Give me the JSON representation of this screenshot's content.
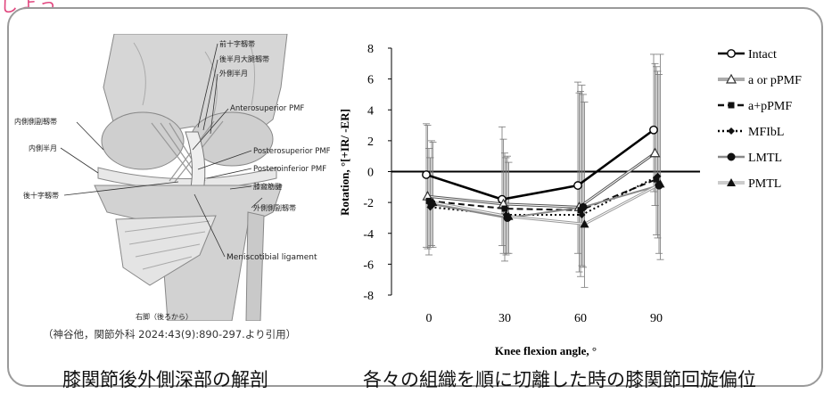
{
  "top_partial": "しよう",
  "anatomy": {
    "labels": {
      "acl": "前十字靱帯",
      "meniscofemoral": "後半月大腿靱帯",
      "lateral_meniscus": "外側半月",
      "mcl": "内側側副靱帯",
      "medial_meniscus": "内側半月",
      "pcl": "後十字靱帯",
      "antero_pmf": "Anterosuperior PMF",
      "postero_sup_pmf": "Posterosuperior PMF",
      "postero_inf_pmf": "Posteroinferior PMF",
      "popliteus": "膝窩筋腱",
      "lcl": "外側側副靱帯",
      "meniscotibial": "Meniscotibial  ligament"
    },
    "view_label": "右脚（後ろから）",
    "citation": "（神谷他，関節外科 2024:43(9):890-297.より引用）"
  },
  "captions": {
    "left": "膝関節後外側深部の解剖",
    "right": "各々の組織を順に切離した時の膝関節回旋偏位"
  },
  "colors": {
    "accent": "#e1477f",
    "frame": "#9a9a9a"
  },
  "chart_data": {
    "type": "line",
    "x": [
      0,
      30,
      60,
      90
    ],
    "xlabel": "Knee flexion angle, °",
    "ylabel": "Rotation, °[+IR/ -ER]",
    "ylim": [
      -8,
      8
    ],
    "yticks": [
      8,
      6,
      4,
      2,
      0,
      -2,
      -4,
      -6,
      -8
    ],
    "xticks": [
      0,
      30,
      60,
      90
    ],
    "grid": false,
    "legend_position": "top-right",
    "series": [
      {
        "name": "Intact",
        "values": [
          -0.2,
          -1.8,
          -0.9,
          2.7
        ],
        "err_plus": [
          3.3,
          4.7,
          6.7,
          4.9
        ],
        "err_minus": [
          4.7,
          3.0,
          4.4,
          4.0
        ],
        "line": "#000000",
        "style": "solid-thick",
        "marker": "circle-open"
      },
      {
        "name": "a or pPMF",
        "values": [
          -1.6,
          -2.1,
          -2.3,
          1.2
        ],
        "err_plus": [
          4.6,
          4.2,
          7.4,
          5.8
        ],
        "err_minus": [
          3.4,
          3.2,
          4.2,
          3.4
        ],
        "line": "#555555",
        "style": "double",
        "marker": "triangle-open"
      },
      {
        "name": "a+pPMF",
        "values": [
          -1.9,
          -2.4,
          -2.5,
          -0.5
        ],
        "err_plus": [
          3.4,
          3.6,
          7.7,
          7.3
        ],
        "err_minus": [
          3.5,
          3.4,
          4.3,
          3.6
        ],
        "line": "#111111",
        "style": "dashed",
        "marker": "square"
      },
      {
        "name": "MFIbL",
        "values": [
          -2.3,
          -2.8,
          -2.8,
          -0.3
        ],
        "err_plus": [
          3.2,
          3.7,
          8.4,
          6.8
        ],
        "err_minus": [
          2.6,
          2.6,
          3.3,
          4.0
        ],
        "line": "#000000",
        "style": "dotted",
        "marker": "diamond"
      },
      {
        "name": "LMTL",
        "values": [
          -2.1,
          -3.0,
          -2.3,
          -0.9
        ],
        "err_plus": [
          4.1,
          4.0,
          7.3,
          7.2
        ],
        "err_minus": [
          2.7,
          2.3,
          3.9,
          4.4
        ],
        "line": "#888888",
        "style": "solid",
        "marker": "circle"
      },
      {
        "name": "PMTL",
        "values": [
          -2.0,
          -2.9,
          -3.4,
          -0.8
        ],
        "err_plus": [
          3.9,
          3.5,
          7.9,
          8.4
        ],
        "err_minus": [
          2.9,
          2.4,
          4.1,
          4.9
        ],
        "line": "#999999",
        "style": "double",
        "marker": "triangle"
      }
    ]
  }
}
